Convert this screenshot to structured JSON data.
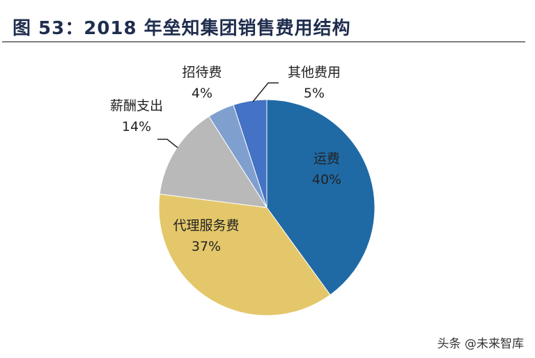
{
  "title": "图 53：2018 年垒知集团销售费用结构",
  "watermark": "头条 @未来智库",
  "chart_data": {
    "type": "pie",
    "title": "图 53：2018 年垒知集团销售费用结构",
    "start": "12 o'clock, clockwise",
    "slices": [
      {
        "label": "运费",
        "value": 40,
        "value_label": "40%",
        "color": "#1f6aa5"
      },
      {
        "label": "代理服务费",
        "value": 37,
        "value_label": "37%",
        "color": "#e4c76a"
      },
      {
        "label": "薪酬支出",
        "value": 14,
        "value_label": "14%",
        "color": "#b9b9b9"
      },
      {
        "label": "招待费",
        "value": 4,
        "value_label": "4%",
        "color": "#7f9fcf"
      },
      {
        "label": "其他费用",
        "value": 5,
        "value_label": "5%",
        "color": "#4472c4"
      }
    ]
  }
}
